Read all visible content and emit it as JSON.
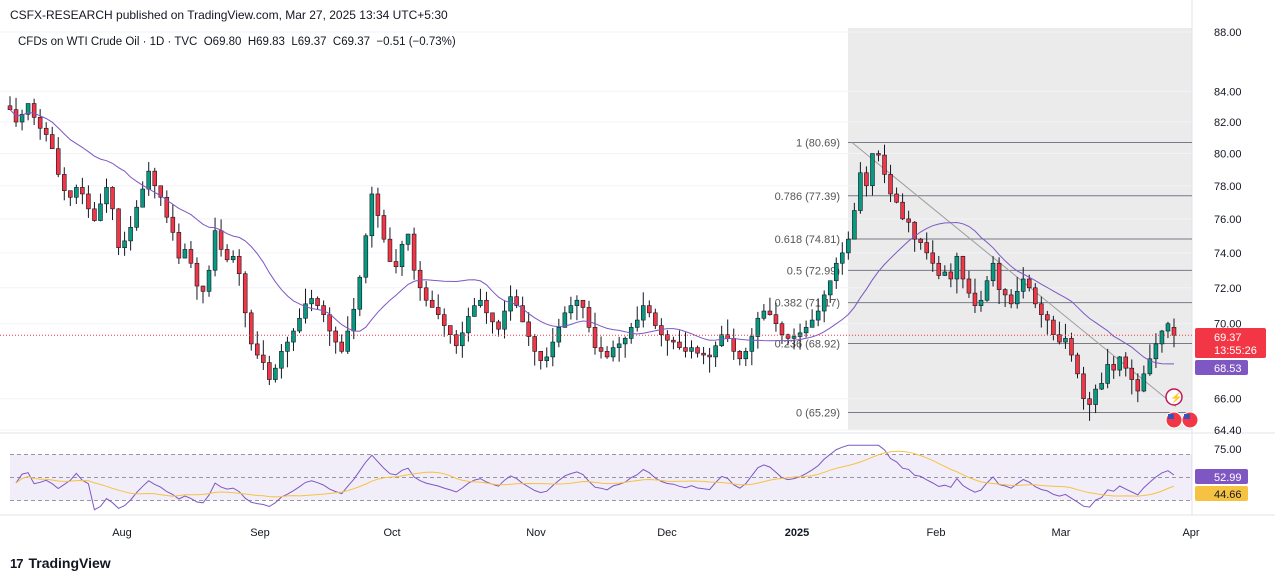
{
  "header": {
    "publisher": "CSFX-RESEARCH published on TradingView.com, Mar 27, 2025 13:34 UTC+5:30",
    "symbol": "CFDs on WTI Crude Oil · 1D · TVC",
    "open": "O69.80",
    "high": "H69.83",
    "low": "L69.37",
    "close": "C69.37",
    "change": "−0.51 (−0.73%)"
  },
  "brand": {
    "name": "TradingView",
    "logo": "17"
  },
  "colors": {
    "up": "#089981",
    "down": "#f23645",
    "ma": "#7e57c2",
    "rsi": "#7e57c2",
    "rsi_ma": "#f5c242",
    "highlight": "#e6e6e6"
  },
  "chart_data": [
    {
      "type": "candlestick",
      "y_ticks": [
        "88.00",
        "84.00",
        "82.00",
        "80.00",
        "78.00",
        "76.00",
        "74.00",
        "72.00",
        "70.00",
        "66.00",
        "64.40"
      ],
      "x_ticks": [
        "Aug",
        "Sep",
        "Oct",
        "Nov",
        "Dec",
        "2025",
        "Feb",
        "Mar",
        "Apr"
      ],
      "ylim": [
        64.4,
        88.0
      ],
      "scale": "log",
      "price_tag": {
        "price": "69.37",
        "countdown": "13:55:26"
      },
      "ma_tag": "68.53",
      "fib_levels": [
        {
          "label": "1 (80.69)",
          "value": 80.69
        },
        {
          "label": "0.786 (77.39)",
          "value": 77.39
        },
        {
          "label": "0.618 (74.81)",
          "value": 74.81
        },
        {
          "label": "0.5 (72.99)",
          "value": 72.99
        },
        {
          "label": "0.382 (71.17)",
          "value": 71.17
        },
        {
          "label": "0.236 (68.92)",
          "value": 68.92
        },
        {
          "label": "0 (65.29)",
          "value": 65.29
        }
      ],
      "closes": [
        82.8,
        82.0,
        82.5,
        83.2,
        82.3,
        81.6,
        81.2,
        80.3,
        78.7,
        77.7,
        77.3,
        77.9,
        77.5,
        76.6,
        75.9,
        76.9,
        77.9,
        76.6,
        74.3,
        74.7,
        75.5,
        76.7,
        77.8,
        78.9,
        78.0,
        77.3,
        76.1,
        75.2,
        73.7,
        74.2,
        73.4,
        72.1,
        71.8,
        73.0,
        75.3,
        74.2,
        73.6,
        73.8,
        72.8,
        70.6,
        68.9,
        68.3,
        67.9,
        67.0,
        67.6,
        68.5,
        69.0,
        69.6,
        70.3,
        71.1,
        71.4,
        71.0,
        70.5,
        69.6,
        69.0,
        68.5,
        69.6,
        70.8,
        72.6,
        75.0,
        77.5,
        76.2,
        74.8,
        73.5,
        73.2,
        74.5,
        75.1,
        73.0,
        72.0,
        71.3,
        70.9,
        70.5,
        69.9,
        69.4,
        68.8,
        69.5,
        70.4,
        71.0,
        71.3,
        70.6,
        70.1,
        69.7,
        70.7,
        71.5,
        71.0,
        70.1,
        69.3,
        68.5,
        68.0,
        68.2,
        69.0,
        69.8,
        70.6,
        71.0,
        71.3,
        70.9,
        69.8,
        68.7,
        68.5,
        68.2,
        68.7,
        68.9,
        69.2,
        69.8,
        70.2,
        71.0,
        70.6,
        69.9,
        69.4,
        69.1,
        69.0,
        68.7,
        68.5,
        68.7,
        68.4,
        68.3,
        68.2,
        68.8,
        69.4,
        69.2,
        68.5,
        68.1,
        68.5,
        69.3,
        70.3,
        70.7,
        70.5,
        70.0,
        69.4,
        69.2,
        69.3,
        69.5,
        69.8,
        70.2,
        70.7,
        71.6,
        72.4,
        73.4,
        74.0,
        74.8,
        76.5,
        78.8,
        78.0,
        80.0,
        79.9,
        78.7,
        77.5,
        77.0,
        76.0,
        75.8,
        74.8,
        74.6,
        74.0,
        73.4,
        72.7,
        72.9,
        72.5,
        73.8,
        72.5,
        71.7,
        71.0,
        71.3,
        72.4,
        73.4,
        71.9,
        71.6,
        71.1,
        71.8,
        72.5,
        72.0,
        71.1,
        70.5,
        70.2,
        69.4,
        69.0,
        69.2,
        68.3,
        67.3,
        66.0,
        65.7,
        66.5,
        66.8,
        67.8,
        67.5,
        68.2,
        67.6,
        67.0,
        66.4,
        67.3,
        68.1,
        68.9,
        69.6,
        70.0,
        69.37
      ],
      "rsi": {
        "value": "52.99",
        "ma_value": "44.66",
        "upper_label": "75.00",
        "bands": [
          70,
          30
        ]
      }
    }
  ]
}
